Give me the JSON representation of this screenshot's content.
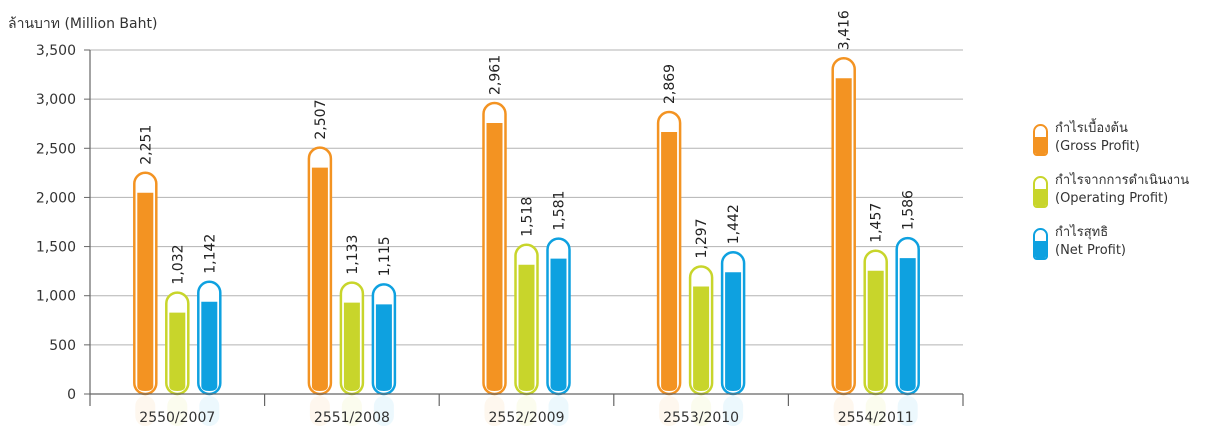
{
  "unit_label": "ล้านบาท (Million Baht)",
  "chart_data": {
    "type": "bar",
    "categories": [
      "2550/2007",
      "2551/2008",
      "2552/2009",
      "2553/2010",
      "2554/2011"
    ],
    "series": [
      {
        "name": "กำไรเบื้องต้น (Gross Profit)",
        "values": [
          2251,
          2507,
          2961,
          2869,
          3416
        ],
        "labels": [
          "2,251",
          "2,507",
          "2,961",
          "2,869",
          "3,416"
        ]
      },
      {
        "name": "กำไรจากการดำเนินงาน (Operating Profit)",
        "values": [
          1032,
          1133,
          1518,
          1297,
          1457
        ],
        "labels": [
          "1,032",
          "1,133",
          "1,518",
          "1,297",
          "1,457"
        ]
      },
      {
        "name": "กำไรสุทธิ (Net Profit)",
        "values": [
          1142,
          1115,
          1581,
          1442,
          1586
        ],
        "labels": [
          "1,142",
          "1,115",
          "1,581",
          "1,442",
          "1,586"
        ]
      }
    ],
    "ylim": [
      0,
      3500
    ],
    "yticks": [
      0,
      500,
      1000,
      1500,
      2000,
      2500,
      3000,
      3500
    ],
    "ytick_labels": [
      "0",
      "500",
      "1,000",
      "1,500",
      "2,000",
      "2,500",
      "3,000",
      "3,500"
    ],
    "grid": true,
    "legend_position": "right",
    "colors": [
      "#f39322",
      "#c8d52b",
      "#0ea1e0"
    ]
  },
  "legend": [
    {
      "thai": "กำไรเบื้องต้น",
      "english": "(Gross Profit)",
      "color": "#f39322"
    },
    {
      "thai": "กำไรจากการดำเนินงาน",
      "english": "(Operating Profit)",
      "color": "#c8d52b"
    },
    {
      "thai": "กำไรสุทธิ",
      "english": "(Net Profit)",
      "color": "#0ea1e0"
    }
  ]
}
